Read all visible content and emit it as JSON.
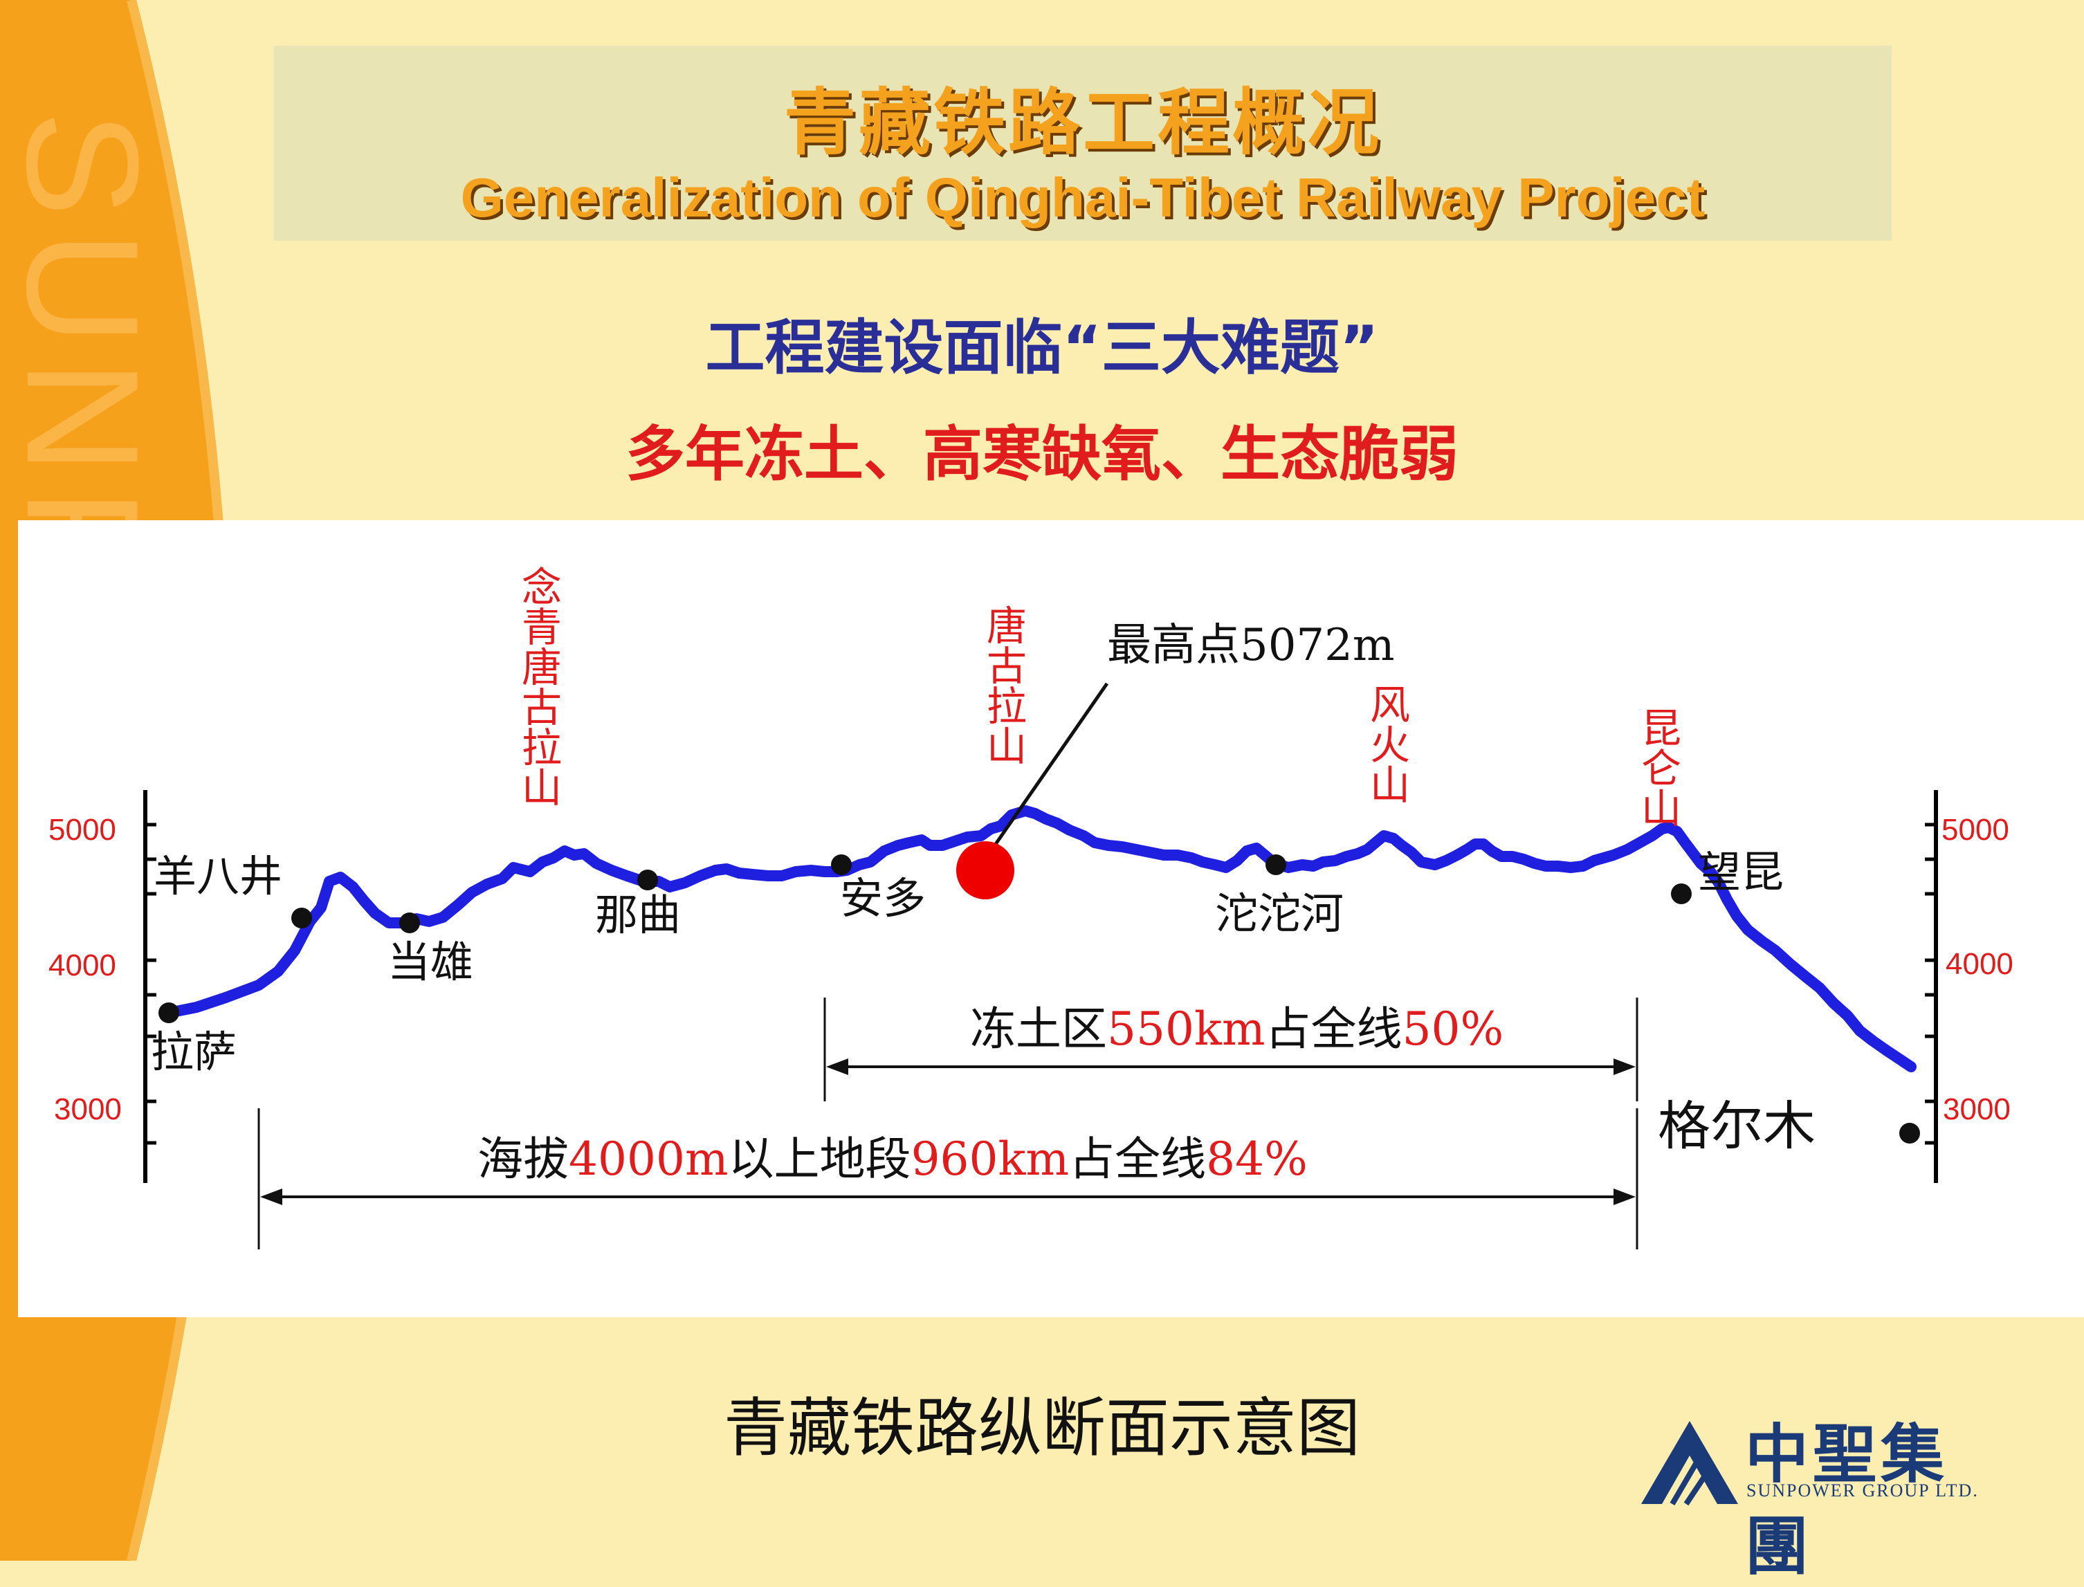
{
  "title": {
    "cn": "青藏铁路工程概况",
    "en": "Generalization of Qinghai-Tibet Railway Project"
  },
  "subtitle": "工程建设面临“三大难题”",
  "challenges": "多年冻土、高寒缺氧、生态脆弱",
  "profile": {
    "axis_ticks": [
      "5000",
      "4000",
      "3000"
    ],
    "mountains": [
      {
        "name": "念青唐古拉山"
      },
      {
        "name": "唐古拉山"
      },
      {
        "name": "风火山"
      },
      {
        "name": "昆仑山"
      }
    ],
    "stations": [
      {
        "name": "拉萨"
      },
      {
        "name": "羊八井"
      },
      {
        "name": "当雄"
      },
      {
        "name": "那曲"
      },
      {
        "name": "安多"
      },
      {
        "name": "沱沱河"
      },
      {
        "name": "望昆"
      },
      {
        "name": "格尔木"
      }
    ],
    "highest_point": "最高点5072m",
    "permafrost": {
      "prefix": "冻土区",
      "length": "550km",
      "mid": "占全线",
      "percent": "50%"
    },
    "high_altitude": {
      "prefix": "海拔",
      "altitude": "4000m",
      "mid": "以上地段",
      "length": "960km",
      "mid2": "占全线",
      "percent": "84%"
    }
  },
  "caption": "青藏铁路纵断面示意图",
  "logo": {
    "cn": "中聖集團",
    "en": "SUNPOWER GROUP LTD."
  },
  "background_watermark": "SUNPOWER",
  "colors": {
    "route": "#1f1fe0",
    "mountain_label": "#e01c1c",
    "title": "#f4a11e",
    "subtitle": "#2a2e97",
    "panel": "#ffffff",
    "highest_marker": "#ee0000"
  }
}
